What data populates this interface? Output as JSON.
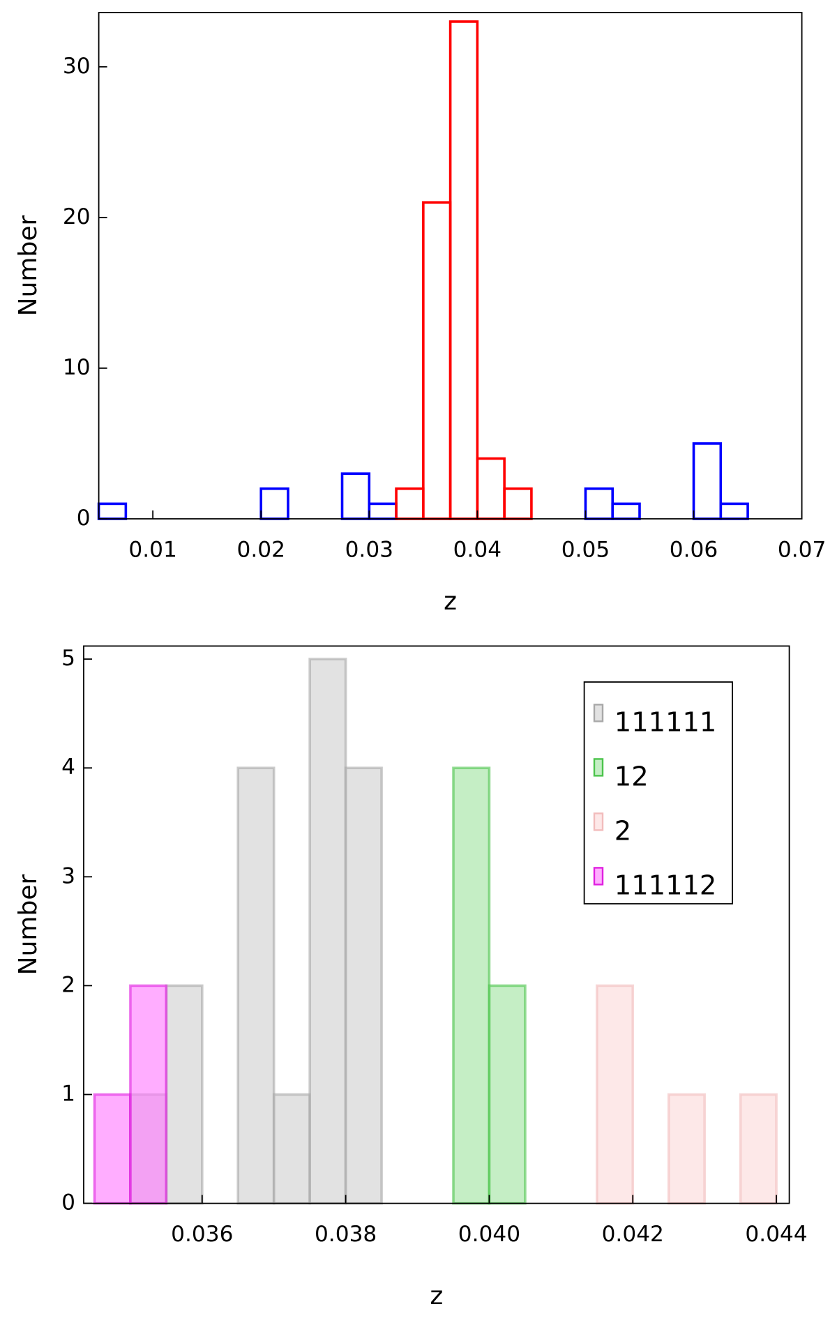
{
  "chart_data": [
    {
      "type": "histogram",
      "xlabel": "z",
      "ylabel": "Number",
      "bins": [
        0.005,
        0.0075,
        0.01,
        0.0125,
        0.015,
        0.0175,
        0.02,
        0.0225,
        0.025,
        0.0275,
        0.03,
        0.0325,
        0.035,
        0.0375,
        0.04,
        0.0425,
        0.045,
        0.0475,
        0.05,
        0.0525,
        0.055,
        0.0575,
        0.06,
        0.0625,
        0.065,
        0.0675,
        0.07
      ],
      "series": [
        {
          "color": "#0000ff",
          "values": [
            1,
            0,
            0,
            0,
            0,
            0,
            2,
            0,
            0,
            3,
            1,
            0,
            0,
            0,
            0,
            0,
            0,
            0,
            2,
            1,
            0,
            0,
            5,
            1,
            0,
            0
          ]
        },
        {
          "color": "#ff0000",
          "values": [
            0,
            0,
            0,
            0,
            0,
            0,
            0,
            0,
            0,
            0,
            0,
            2,
            21,
            33,
            4,
            2,
            0,
            0,
            0,
            0,
            0,
            0,
            0,
            0,
            0,
            0
          ]
        }
      ],
      "xlim": [
        0.005,
        0.07
      ],
      "xticks": [
        0.01,
        0.02,
        0.03,
        0.04,
        0.05,
        0.06,
        0.07
      ],
      "ylim": [
        0,
        33.6
      ],
      "yticks": [
        0,
        10,
        20,
        30
      ]
    },
    {
      "type": "histogram",
      "xlabel": "z",
      "ylabel": "Number",
      "bins": [
        0.0345,
        0.035,
        0.0355,
        0.036,
        0.0365,
        0.037,
        0.0375,
        0.038,
        0.0385,
        0.039,
        0.0395,
        0.04,
        0.0405,
        0.041,
        0.0415,
        0.042,
        0.0425,
        0.043,
        0.0435,
        0.044
      ],
      "series": [
        {
          "name": "111111",
          "color": "#a8a8a8",
          "fill": "#cfcfcf",
          "values": [
            0,
            1,
            2,
            0,
            4,
            1,
            5,
            4,
            0,
            0,
            0,
            0,
            0,
            0,
            0,
            0,
            0,
            0,
            0
          ]
        },
        {
          "name": "12",
          "color": "#4cc44c",
          "fill": "#9fe29f",
          "values": [
            0,
            0,
            0,
            0,
            0,
            0,
            0,
            0,
            0,
            0,
            4,
            2,
            0,
            0,
            0,
            0,
            0,
            0,
            0
          ]
        },
        {
          "name": "2",
          "color": "#f2bcbc",
          "fill": "#fbd9d9",
          "values": [
            0,
            0,
            0,
            0,
            0,
            0,
            0,
            0,
            0,
            0,
            0,
            0,
            0,
            0,
            2,
            0,
            1,
            0,
            1
          ]
        },
        {
          "name": "111112",
          "color": "#e020e0",
          "fill": "#ff77ff",
          "values": [
            1,
            2,
            0,
            0,
            0,
            0,
            0,
            0,
            0,
            0,
            0,
            0,
            0,
            0,
            0,
            0,
            0,
            0,
            0
          ]
        }
      ],
      "legend": "upper right",
      "xlim": [
        0.03435,
        0.04418
      ],
      "xticks": [
        0.036,
        0.038,
        {
          "value": 0.04,
          "label": "0.040"
        },
        0.042,
        0.044
      ],
      "ylim": [
        0,
        5.12
      ],
      "yticks": [
        0,
        1,
        2,
        3,
        4,
        5
      ]
    }
  ]
}
